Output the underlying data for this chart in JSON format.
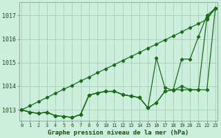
{
  "background_color": "#cceedd",
  "grid_color": "#aaccbb",
  "line_color": "#1a6b1a",
  "title": "Graphe pression niveau de la mer (hPa)",
  "ylabel_vals": [
    1013,
    1014,
    1015,
    1016,
    1017
  ],
  "xlim": [
    -0.3,
    23.3
  ],
  "ylim": [
    1012.55,
    1017.55
  ],
  "series": {
    "line_straight": [
      1013.0,
      1013.17,
      1013.35,
      1013.52,
      1013.7,
      1013.87,
      1014.04,
      1014.22,
      1014.39,
      1014.57,
      1014.74,
      1014.91,
      1015.09,
      1015.26,
      1015.43,
      1015.61,
      1015.78,
      1015.96,
      1016.13,
      1016.3,
      1016.48,
      1016.65,
      1016.83,
      1017.3
    ],
    "line_mid": [
      1013.0,
      1012.9,
      1012.85,
      1012.9,
      1012.75,
      1012.72,
      1012.68,
      1012.8,
      1013.62,
      1013.72,
      1013.78,
      1013.78,
      1013.65,
      1013.58,
      1013.52,
      1013.08,
      1013.3,
      1013.78,
      1013.85,
      1015.15,
      1015.15,
      1016.1,
      1017.0,
      1017.3
    ],
    "line_spike": [
      1013.0,
      1012.9,
      1012.85,
      1012.9,
      1012.75,
      1012.72,
      1012.68,
      1012.8,
      1013.62,
      1013.72,
      1013.78,
      1013.78,
      1013.65,
      1013.58,
      1013.52,
      1013.08,
      1015.2,
      1013.95,
      1013.82,
      1014.0,
      1013.85,
      1013.85,
      1013.85,
      1017.3
    ],
    "line_smooth": [
      1013.0,
      1012.9,
      1012.85,
      1012.9,
      1012.75,
      1012.72,
      1012.68,
      1012.8,
      1013.62,
      1013.72,
      1013.78,
      1013.78,
      1013.65,
      1013.58,
      1013.52,
      1013.08,
      1013.3,
      1013.78,
      1013.85,
      1013.85,
      1013.85,
      1013.85,
      1016.9,
      1017.3
    ]
  }
}
